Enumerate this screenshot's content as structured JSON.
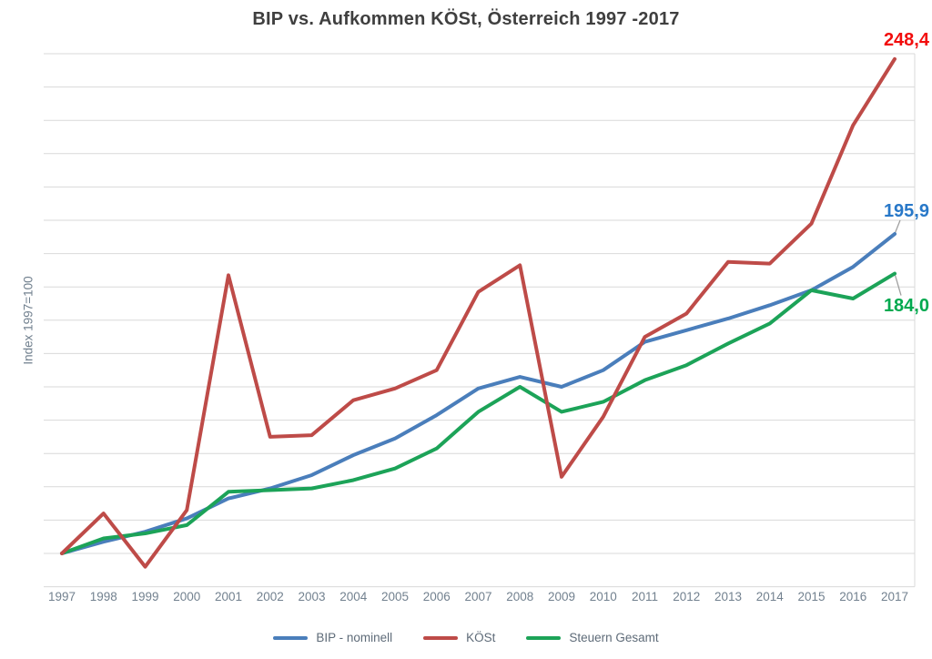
{
  "chart": {
    "title": "BIP vs. Aufkommen KÖSt, Österreich 1997 -2017",
    "y_axis_title": "Index 1997=100",
    "background": "#ffffff",
    "gridline_color": "#d9d9d9",
    "axis_text_color": "#72818f",
    "title_color": "#3f3f3f"
  },
  "chart_data": {
    "type": "line",
    "title": "BIP vs. Aufkommen KÖSt, Österreich 1997 -2017",
    "xlabel": "",
    "ylabel": "Index 1997=100",
    "x": [
      1997,
      1998,
      1999,
      2000,
      2001,
      2002,
      2003,
      2004,
      2005,
      2006,
      2007,
      2008,
      2009,
      2010,
      2011,
      2012,
      2013,
      2014,
      2015,
      2016,
      2017
    ],
    "ylim": [
      90,
      250
    ],
    "grid_step": 10,
    "grid": "horizontal",
    "y_tick_labels_visible": false,
    "legend_position": "bottom",
    "series": [
      {
        "name": "BIP - nominell",
        "color": "#4a7ebb",
        "z": 1,
        "end_label": "195,9",
        "end_label_color": "#2878c8",
        "values": [
          100,
          103.5,
          106.5,
          110.5,
          116.5,
          119.5,
          123.5,
          129.5,
          134.5,
          141.5,
          149.5,
          153,
          150,
          155,
          163.5,
          167,
          170.5,
          174.5,
          179,
          186,
          195.9
        ]
      },
      {
        "name": "KÖSt",
        "color": "#be4b48",
        "z": 3,
        "end_label": "248,4",
        "end_label_color": "#f20d0d",
        "values": [
          100,
          112,
          96,
          113,
          183.5,
          135,
          135.5,
          146,
          149.5,
          155,
          178.5,
          186.5,
          123,
          141,
          165,
          172,
          187.5,
          187,
          199,
          228.5,
          248.4
        ]
      },
      {
        "name": "Steuern Gesamt",
        "color": "#1ca358",
        "z": 2,
        "end_label": "184,0",
        "end_label_color": "#00a94f",
        "values": [
          100,
          104.5,
          106,
          108.5,
          118.5,
          119,
          119.5,
          122,
          125.5,
          131.5,
          142.5,
          150,
          142.5,
          145.5,
          152,
          156.5,
          163,
          169,
          179,
          176.5,
          184
        ]
      }
    ]
  }
}
